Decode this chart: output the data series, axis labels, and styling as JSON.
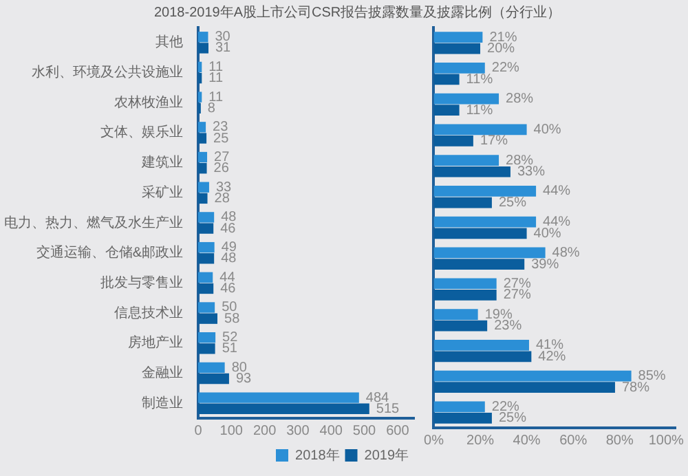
{
  "chart_data": [
    {
      "type": "bar",
      "orientation": "horizontal",
      "title": "2018-2019年A股上市公司CSR报告披露数量及披露比例（分行业）",
      "categories": [
        "其他",
        "水利、环境及公共设施业",
        "农林牧渔业",
        "文体、娱乐业",
        "建筑业",
        "采矿业",
        "电力、热力、燃气及水生产业",
        "交通运输、仓储&邮政业",
        "批发与零售业",
        "信息技术业",
        "房地产业",
        "金融业",
        "制造业"
      ],
      "series": [
        {
          "name": "2018年",
          "color": "#2b8fd6",
          "values": [
            30,
            11,
            11,
            23,
            27,
            33,
            48,
            49,
            44,
            50,
            52,
            80,
            484
          ]
        },
        {
          "name": "2019年",
          "color": "#0b5e9e",
          "values": [
            31,
            11,
            8,
            25,
            26,
            28,
            46,
            48,
            46,
            58,
            51,
            93,
            515
          ]
        }
      ],
      "xlim": [
        0,
        650
      ],
      "xticks": [
        0,
        100,
        200,
        300,
        400,
        500,
        600
      ],
      "data_labels": true,
      "legend": "bottom",
      "grid": false
    },
    {
      "type": "bar",
      "orientation": "horizontal",
      "categories": [
        null,
        null,
        null,
        null,
        null,
        null,
        null,
        null,
        null,
        null,
        null,
        null,
        null
      ],
      "series": [
        {
          "color": "#2b8fd6",
          "values": [
            21,
            22,
            28,
            40,
            28,
            44,
            44,
            48,
            27,
            19,
            41,
            85,
            22
          ],
          "value_labels": [
            "21%",
            "22%",
            "28%",
            "40%",
            "28%",
            "44%",
            "44%",
            "48%",
            "27%",
            "19%",
            "41%",
            "85%",
            "22%"
          ]
        },
        {
          "color": "#0b5e9e",
          "values": [
            20,
            11,
            11,
            17,
            33,
            25,
            40,
            39,
            27,
            23,
            42,
            78,
            25
          ],
          "value_labels": [
            "20%",
            "11%",
            "11%",
            "17%",
            "33%",
            "25%",
            "40%",
            "39%",
            "27%",
            "23%",
            "42%",
            "78%",
            "25%"
          ]
        }
      ],
      "xlim": [
        0,
        104
      ],
      "xticks": [
        {
          "value": 0,
          "label": "0%"
        },
        {
          "value": 20,
          "label": "20%"
        },
        {
          "value": 40,
          "label": "40%"
        },
        {
          "value": 60,
          "label": "60%"
        },
        {
          "value": 80,
          "label": "80%"
        },
        {
          "value": 100,
          "label": "100%"
        }
      ],
      "tick_labels": "x",
      "grid": false
    }
  ]
}
